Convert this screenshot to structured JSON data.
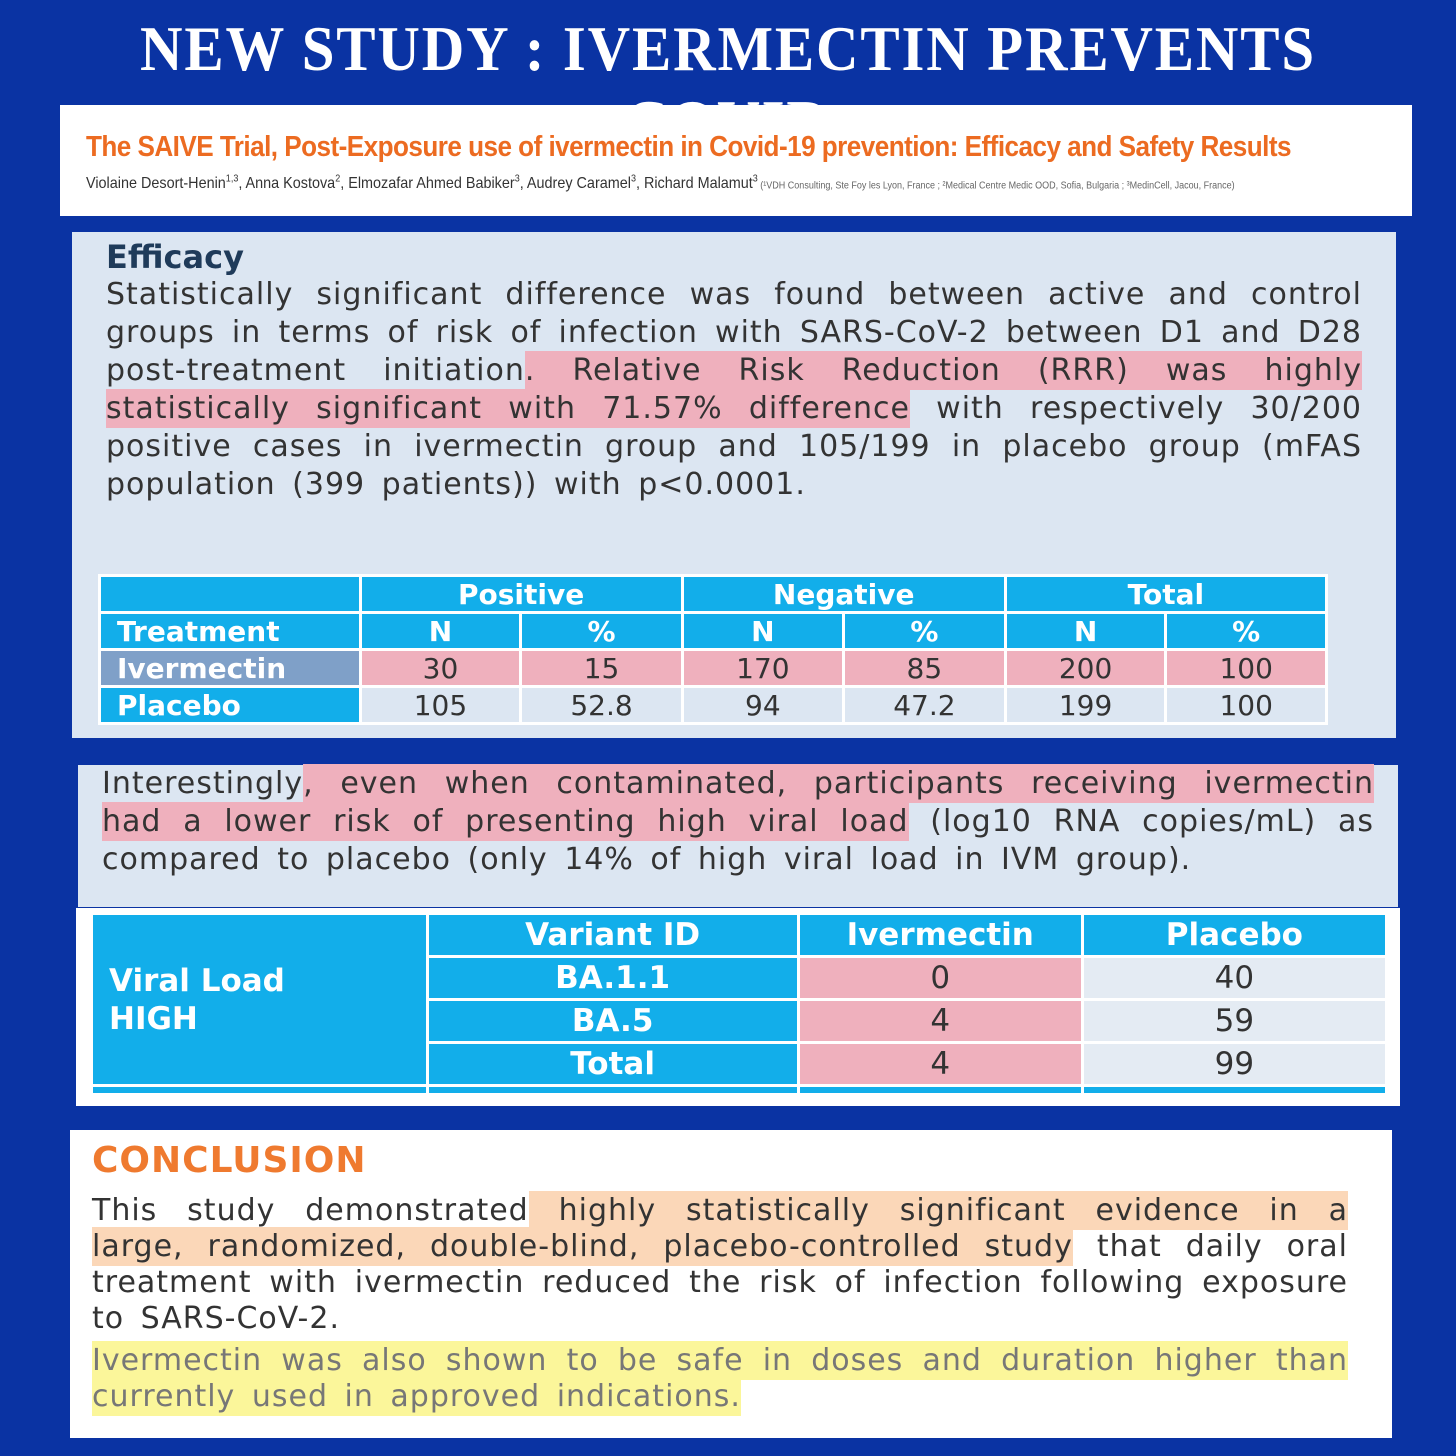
{
  "header": {
    "title": "NEW STUDY : IVERMECTIN PREVENTS COVID"
  },
  "paper": {
    "title": "The SAIVE Trial, Post-Exposure use of ivermectin in Covid-19 prevention: Efficacy and Safety Results",
    "authors": [
      {
        "text": "Violaine Desort-Henin"
      },
      {
        "sup": "1,3"
      },
      {
        "text": ", Anna Kostova"
      },
      {
        "sup": "2"
      },
      {
        "text": ", Elmozafar Ahmed Babiker"
      },
      {
        "sup": "3"
      },
      {
        "text": ", Audrey Caramel"
      },
      {
        "sup": "3"
      },
      {
        "text": ", Richard Malamut"
      },
      {
        "sup": "3"
      }
    ],
    "affiliations": " (¹VDH Consulting, Ste Foy les Lyon, France ; ²Medical Centre Medic OOD, Sofia, Bulgaria ; ³MedinCell, Jacou, France)"
  },
  "efficacy": {
    "heading": "Efficacy",
    "segments": [
      {
        "text": "Statistically significant difference was found between active and control groups in terms of risk of infection with SARS-CoV-2 between D1 and D28 post-treatment initiation"
      },
      {
        "text": ". Relative Risk Reduction (RRR) was highly statistically significant with 71.57% difference",
        "highlight": "#efb0bd"
      },
      {
        "text": " with respectively 30/200 positive cases in ivermectin group and 105/199 in placebo group (mFAS population (399 patients)) with p<0.0001."
      }
    ]
  },
  "table1": {
    "group_headers": [
      "Positive",
      "Negative",
      "Total"
    ],
    "sub_headers": [
      "Treatment",
      "N",
      "%",
      "N",
      "%",
      "N",
      "%"
    ],
    "rows": [
      {
        "cells": [
          "Ivermectin",
          30,
          15,
          170,
          85,
          200,
          100
        ],
        "highlight": "#efb0bd"
      },
      {
        "cells": [
          "Placebo",
          105,
          52.8,
          94,
          47.2,
          199,
          100
        ]
      }
    ]
  },
  "viral": {
    "segments": [
      {
        "text": "Interestingly"
      },
      {
        "text": ", even when contaminated, participants receiving ivermectin had a lower risk of presenting high viral load",
        "highlight": "#efb0bd"
      },
      {
        "text": " (log10 RNA copies/mL) as compared to placebo (only 14% of high viral load in IVM group)."
      }
    ]
  },
  "table2": {
    "row_label": "Viral Load\nHIGH",
    "headers": [
      "Variant ID",
      "Ivermectin",
      "Placebo"
    ],
    "rows": [
      [
        "BA.1.1",
        0,
        40
      ],
      [
        "BA.5",
        4,
        59
      ],
      [
        "Total",
        4,
        99
      ]
    ],
    "highlight_column": 1,
    "highlight": "#efb0bd"
  },
  "conclusion": {
    "heading": "CONCLUSION",
    "paragraphs": [
      [
        {
          "text": "This study demonstrated"
        },
        {
          "text": " highly statistically significant evidence in a large, randomized, double-blind, placebo-controlled study",
          "highlight": "#fbd7b8"
        },
        {
          "text": " that daily oral treatment with ivermectin reduced the risk of infection following exposure to SARS-CoV-2."
        }
      ],
      [
        {
          "text": "Ivermectin was also shown to be safe in doses and duration higher than currently used in approved indications.",
          "highlight": "#fbf69a"
        }
      ]
    ]
  }
}
